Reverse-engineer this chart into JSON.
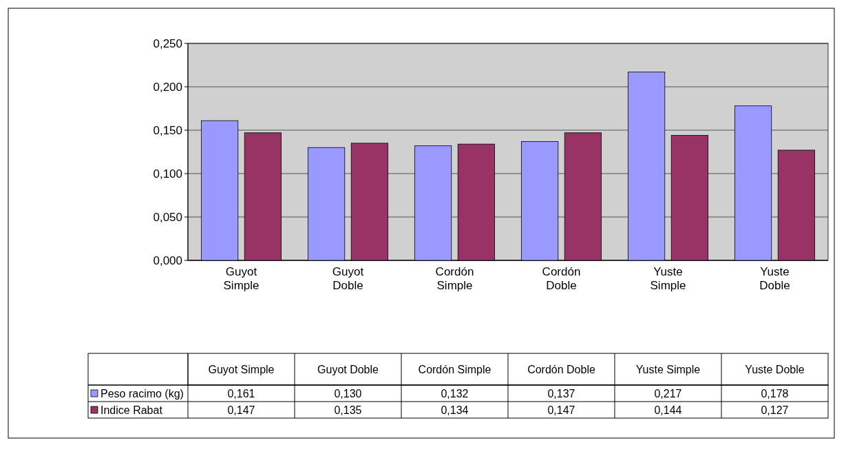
{
  "chart_data": {
    "type": "bar",
    "categories": [
      "Guyot Simple",
      "Guyot Doble",
      "Cordón Simple",
      "Cordón Doble",
      "Yuste Simple",
      "Yuste Doble"
    ],
    "series": [
      {
        "name": "Peso racimo (kg)",
        "color": "#9999ff",
        "values": [
          0.161,
          0.13,
          0.132,
          0.137,
          0.217,
          0.178
        ],
        "value_labels": [
          "0,161",
          "0,130",
          "0,132",
          "0,137",
          "0,217",
          "0,178"
        ]
      },
      {
        "name": "Indice Rabat",
        "color": "#993366",
        "values": [
          0.147,
          0.135,
          0.134,
          0.147,
          0.144,
          0.127
        ],
        "value_labels": [
          "0,147",
          "0,135",
          "0,134",
          "0,147",
          "0,144",
          "0,127"
        ]
      }
    ],
    "ylim": [
      0,
      0.25
    ],
    "yticks": [
      {
        "value": 0,
        "label": "0,000"
      },
      {
        "value": 0.05,
        "label": "0,050"
      },
      {
        "value": 0.1,
        "label": "0,100"
      },
      {
        "value": 0.15,
        "label": "0,150"
      },
      {
        "value": 0.2,
        "label": "0,200"
      },
      {
        "value": 0.25,
        "label": "0,250"
      }
    ],
    "grid": "y",
    "legend": "bottom"
  }
}
